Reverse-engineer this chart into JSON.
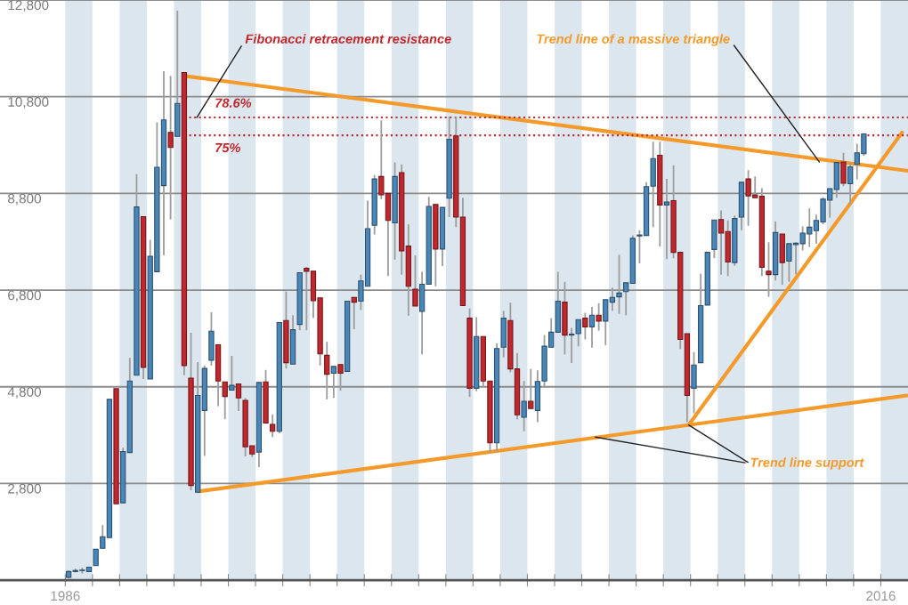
{
  "chart_data": {
    "type": "candlestick",
    "x": [
      1986.125,
      1986.375,
      1986.625,
      1986.875,
      1987.125,
      1987.375,
      1987.625,
      1987.875,
      1988.125,
      1988.375,
      1988.625,
      1988.875,
      1989.125,
      1989.375,
      1989.625,
      1989.875,
      1990.125,
      1990.375,
      1990.625,
      1990.875,
      1991.125,
      1991.375,
      1991.625,
      1991.875,
      1992.125,
      1992.375,
      1992.625,
      1992.875,
      1993.125,
      1993.375,
      1993.625,
      1993.875,
      1994.125,
      1994.375,
      1994.625,
      1994.875,
      1995.125,
      1995.375,
      1995.625,
      1995.875,
      1996.125,
      1996.375,
      1996.625,
      1996.875,
      1997.125,
      1997.375,
      1997.625,
      1997.875,
      1998.125,
      1998.375,
      1998.625,
      1998.875,
      1999.125,
      1999.375,
      1999.625,
      1999.875,
      2000.125,
      2000.375,
      2000.625,
      2000.875,
      2001.125,
      2001.375,
      2001.625,
      2001.875,
      2002.125,
      2002.375,
      2002.625,
      2002.875,
      2003.125,
      2003.375,
      2003.625,
      2003.875,
      2004.125,
      2004.375,
      2004.625,
      2004.875,
      2005.125,
      2005.375,
      2005.625,
      2005.875,
      2006.125,
      2006.375,
      2006.625,
      2006.875,
      2007.125,
      2007.375,
      2007.625,
      2007.875,
      2008.125,
      2008.375,
      2008.625,
      2008.875,
      2009.125,
      2009.375,
      2009.625,
      2009.875,
      2010.125,
      2010.375,
      2010.625,
      2010.875,
      2011.125,
      2011.375,
      2011.625,
      2011.875,
      2012.125,
      2012.375,
      2012.625,
      2012.875,
      2013.125,
      2013.375,
      2013.625,
      2013.875,
      2014.125,
      2014.375,
      2014.625,
      2014.875,
      2015.125,
      2015.375
    ],
    "ohlc": [
      [
        860,
        1000,
        840,
        980
      ],
      [
        980,
        1040,
        960,
        1000
      ],
      [
        1000,
        1060,
        940,
        1010
      ],
      [
        980,
        1080,
        980,
        1070
      ],
      [
        1100,
        1440,
        1100,
        1440
      ],
      [
        1460,
        1940,
        1460,
        1700
      ],
      [
        1680,
        4540,
        1680,
        4540
      ],
      [
        4760,
        4760,
        2380,
        2380
      ],
      [
        2400,
        3540,
        2400,
        3460
      ],
      [
        3440,
        5400,
        3440,
        4920
      ],
      [
        5040,
        9200,
        5040,
        8520
      ],
      [
        8320,
        8320,
        4960,
        5200
      ],
      [
        4960,
        7840,
        4960,
        7500
      ],
      [
        7180,
        10270,
        7180,
        9340
      ],
      [
        8960,
        11330,
        7520,
        10320
      ],
      [
        10060,
        11230,
        8260,
        9750
      ],
      [
        9980,
        12580,
        9980,
        10660
      ],
      [
        11300,
        11300,
        5040,
        5240
      ],
      [
        4980,
        5920,
        2660,
        2760
      ],
      [
        2620,
        5310,
        2600,
        4620
      ],
      [
        4310,
        5240,
        3370,
        5180
      ],
      [
        5350,
        6340,
        5240,
        5950
      ],
      [
        5670,
        5670,
        4400,
        4920
      ],
      [
        4900,
        4900,
        4130,
        4600
      ],
      [
        4730,
        5440,
        4730,
        4830
      ],
      [
        4860,
        4860,
        4300,
        4570
      ],
      [
        4520,
        4570,
        3360,
        3560
      ],
      [
        3580,
        3580,
        3350,
        3410
      ],
      [
        3450,
        4890,
        3140,
        4890
      ],
      [
        4900,
        5150,
        4050,
        4050
      ],
      [
        4020,
        4230,
        3760,
        3880
      ],
      [
        3880,
        6130,
        3840,
        6130
      ],
      [
        6170,
        6770,
        5180,
        5300
      ],
      [
        5270,
        6280,
        5270,
        5980
      ],
      [
        6090,
        7160,
        5970,
        7160
      ],
      [
        7250,
        7280,
        5970,
        7190
      ],
      [
        7190,
        7190,
        6220,
        6580
      ],
      [
        6640,
        6640,
        5240,
        5480
      ],
      [
        5450,
        5730,
        4540,
        5060
      ],
      [
        5080,
        5220,
        4570,
        5220
      ],
      [
        5260,
        5260,
        4720,
        5080
      ],
      [
        5120,
        6570,
        5120,
        6570
      ],
      [
        6650,
        6650,
        5990,
        6550
      ],
      [
        6570,
        7120,
        6390,
        6990
      ],
      [
        6880,
        8650,
        6880,
        8070
      ],
      [
        8140,
        9180,
        7950,
        9100
      ],
      [
        9150,
        10310,
        8680,
        8770
      ],
      [
        8800,
        8800,
        7090,
        8240
      ],
      [
        8190,
        9440,
        7430,
        9150
      ],
      [
        9230,
        9400,
        7120,
        7610
      ],
      [
        7710,
        8160,
        6270,
        6880
      ],
      [
        6820,
        7520,
        6470,
        6470
      ],
      [
        6360,
        7180,
        5470,
        6920
      ],
      [
        6920,
        8730,
        6920,
        8530
      ],
      [
        8570,
        8570,
        6880,
        7650
      ],
      [
        7650,
        8510,
        7300,
        8510
      ],
      [
        8700,
        10390,
        8310,
        9920
      ],
      [
        9990,
        10390,
        8100,
        8310
      ],
      [
        8310,
        8710,
        6480,
        6480
      ],
      [
        6220,
        6420,
        4590,
        4770
      ],
      [
        4770,
        6240,
        4710,
        5840
      ],
      [
        5840,
        5840,
        4800,
        4920
      ],
      [
        4920,
        4920,
        3430,
        3640
      ],
      [
        3640,
        5700,
        3460,
        5590
      ],
      [
        5620,
        6370,
        5410,
        6220
      ],
      [
        6170,
        6540,
        5100,
        5170
      ],
      [
        5170,
        5500,
        4130,
        4220
      ],
      [
        4170,
        4920,
        3880,
        4500
      ],
      [
        4500,
        5170,
        4350,
        4350
      ],
      [
        4310,
        5140,
        4070,
        4910
      ],
      [
        4920,
        5870,
        4800,
        5640
      ],
      [
        5620,
        6220,
        5620,
        5930
      ],
      [
        5930,
        7180,
        5930,
        6570
      ],
      [
        6550,
        6970,
        5470,
        5870
      ],
      [
        5870,
        6020,
        5290,
        5890
      ],
      [
        5900,
        6190,
        5640,
        6190
      ],
      [
        6220,
        6330,
        5780,
        6040
      ],
      [
        6040,
        6450,
        5610,
        6280
      ],
      [
        6280,
        6530,
        5960,
        6160
      ],
      [
        6160,
        6600,
        5660,
        6600
      ],
      [
        6550,
        6850,
        6370,
        6650
      ],
      [
        6660,
        7530,
        6310,
        6740
      ],
      [
        6770,
        6950,
        6280,
        6950
      ],
      [
        6940,
        7930,
        6940,
        7870
      ],
      [
        7920,
        8040,
        7350,
        7940
      ],
      [
        7930,
        9030,
        7930,
        8940
      ],
      [
        8950,
        9870,
        8100,
        9520
      ],
      [
        9590,
        9870,
        7700,
        8560
      ],
      [
        8560,
        9100,
        7440,
        8620
      ],
      [
        8650,
        9380,
        7460,
        7580
      ],
      [
        7580,
        7580,
        5580,
        5780
      ],
      [
        5900,
        5900,
        4070,
        4620
      ],
      [
        4770,
        5520,
        4250,
        5250
      ],
      [
        5300,
        7140,
        5300,
        6480
      ],
      [
        6490,
        7580,
        6490,
        7580
      ],
      [
        7640,
        8250,
        7460,
        8250
      ],
      [
        8260,
        8450,
        7120,
        7980
      ],
      [
        8010,
        8240,
        7090,
        7380
      ],
      [
        7370,
        8340,
        7300,
        8280
      ],
      [
        8310,
        9030,
        8040,
        9030
      ],
      [
        9100,
        9280,
        8130,
        8750
      ],
      [
        8770,
        9150,
        8710,
        8710
      ],
      [
        8740,
        8910,
        7090,
        7270
      ],
      [
        7190,
        7790,
        6660,
        7120
      ],
      [
        7120,
        8220,
        7000,
        7990
      ],
      [
        7960,
        7960,
        6910,
        7370
      ],
      [
        7400,
        7760,
        6970,
        7760
      ],
      [
        7740,
        7790,
        7130,
        7770
      ],
      [
        7760,
        8120,
        7620,
        7980
      ],
      [
        7960,
        8490,
        7690,
        8100
      ],
      [
        8030,
        8360,
        7760,
        8240
      ],
      [
        8210,
        8720,
        8160,
        8680
      ],
      [
        8660,
        8900,
        8300,
        8900
      ],
      [
        8880,
        9440,
        8710,
        9440
      ],
      [
        9450,
        9640,
        8950,
        9010
      ],
      [
        9000,
        9440,
        8570,
        9350
      ],
      [
        9400,
        9830,
        9090,
        9640
      ],
      [
        9620,
        10040,
        9580,
        10030
      ]
    ],
    "colors": [
      "#4a87b9",
      "#4a87b9",
      "#4a87b9",
      "#4a87b9",
      "#4a87b9",
      "#4a87b9",
      "#4a87b9",
      "#c1272d",
      "#4a87b9",
      "#4a87b9",
      "#4a87b9",
      "#c1272d",
      "#4a87b9",
      "#4a87b9",
      "#4a87b9",
      "#c1272d",
      "#4a87b9",
      "#c1272d",
      "#c1272d",
      "#4a87b9",
      "#4a87b9",
      "#4a87b9",
      "#c1272d",
      "#c1272d",
      "#4a87b9",
      "#c1272d",
      "#c1272d",
      "#c1272d",
      "#4a87b9",
      "#c1272d",
      "#c1272d",
      "#4a87b9",
      "#c1272d",
      "#4a87b9",
      "#4a87b9",
      "#c1272d",
      "#c1272d",
      "#c1272d",
      "#c1272d",
      "#4a87b9",
      "#c1272d",
      "#4a87b9",
      "#c1272d",
      "#4a87b9",
      "#4a87b9",
      "#4a87b9",
      "#c1272d",
      "#c1272d",
      "#4a87b9",
      "#c1272d",
      "#c1272d",
      "#c1272d",
      "#4a87b9",
      "#4a87b9",
      "#c1272d",
      "#4a87b9",
      "#4a87b9",
      "#c1272d",
      "#c1272d",
      "#c1272d",
      "#4a87b9",
      "#c1272d",
      "#c1272d",
      "#4a87b9",
      "#4a87b9",
      "#c1272d",
      "#c1272d",
      "#4a87b9",
      "#c1272d",
      "#4a87b9",
      "#4a87b9",
      "#4a87b9",
      "#4a87b9",
      "#c1272d",
      "#4a87b9",
      "#4a87b9",
      "#c1272d",
      "#4a87b9",
      "#c1272d",
      "#4a87b9",
      "#4a87b9",
      "#4a87b9",
      "#4a87b9",
      "#4a87b9",
      "#4a87b9",
      "#4a87b9",
      "#4a87b9",
      "#c1272d",
      "#4a87b9",
      "#c1272d",
      "#c1272d",
      "#c1272d",
      "#4a87b9",
      "#4a87b9",
      "#4a87b9",
      "#4a87b9",
      "#c1272d",
      "#c1272d",
      "#4a87b9",
      "#4a87b9",
      "#c1272d",
      "#c1272d",
      "#c1272d",
      "#c1272d",
      "#4a87b9",
      "#c1272d",
      "#4a87b9",
      "#4a87b9",
      "#4a87b9",
      "#4a87b9",
      "#4a87b9",
      "#4a87b9",
      "#4a87b9",
      "#4a87b9",
      "#c1272d",
      "#4a87b9",
      "#4a87b9",
      "#4a87b9"
    ],
    "series": [
      {
        "type": "line",
        "color": "#f39a2b",
        "x": [
          1990.38,
          2016.95
        ],
        "values": [
          11230,
          9270
        ]
      },
      {
        "type": "line",
        "color": "#f39a2b",
        "x": [
          1990.94,
          2016.95
        ],
        "values": [
          2640,
          4620
        ]
      },
      {
        "type": "line",
        "color": "#f39a2b",
        "x": [
          2008.93,
          2016.78
        ],
        "values": [
          4010,
          10060
        ]
      }
    ],
    "xlim": [
      1983.6,
      2017
    ],
    "xticks": [
      {
        "value": 1986,
        "label": "1986"
      },
      {
        "value": 1987,
        "label": null
      },
      {
        "value": 1988,
        "label": null
      },
      {
        "value": 1989,
        "label": null
      },
      {
        "value": 1990,
        "label": null
      },
      {
        "value": 1991,
        "label": null
      },
      {
        "value": 1992,
        "label": null
      },
      {
        "value": 1993,
        "label": null
      },
      {
        "value": 1994,
        "label": null
      },
      {
        "value": 1995,
        "label": null
      },
      {
        "value": 1996,
        "label": null
      },
      {
        "value": 1997,
        "label": null
      },
      {
        "value": 1998,
        "label": null
      },
      {
        "value": 1999,
        "label": null
      },
      {
        "value": 2000,
        "label": null
      },
      {
        "value": 2001,
        "label": null
      },
      {
        "value": 2002,
        "label": null
      },
      {
        "value": 2003,
        "label": null
      },
      {
        "value": 2004,
        "label": null
      },
      {
        "value": 2005,
        "label": null
      },
      {
        "value": 2006,
        "label": null
      },
      {
        "value": 2007,
        "label": null
      },
      {
        "value": 2008,
        "label": null
      },
      {
        "value": 2009,
        "label": null
      },
      {
        "value": 2010,
        "label": null
      },
      {
        "value": 2011,
        "label": null
      },
      {
        "value": 2012,
        "label": null
      },
      {
        "value": 2013,
        "label": null
      },
      {
        "value": 2014,
        "label": null
      },
      {
        "value": 2015,
        "label": null
      },
      {
        "value": 2016,
        "label": "2016"
      }
    ],
    "ylim": [
      800,
      12800
    ],
    "yticks": [
      {
        "value": 2800,
        "label": "2,800"
      },
      {
        "value": 4800,
        "label": "4,800"
      },
      {
        "value": 6800,
        "label": "6,800"
      },
      {
        "value": 8800,
        "label": "8,800"
      },
      {
        "value": 10800,
        "label": "10,800"
      },
      {
        "value": 12800,
        "label": "12,800"
      }
    ],
    "grid": "y",
    "ref_lines": [
      {
        "axis": "y",
        "value": 10370,
        "color": "#c1272d",
        "line_style": "dotted"
      },
      {
        "axis": "y",
        "value": 10000,
        "color": "#c1272d",
        "line_style": "dotted"
      }
    ],
    "bands": [
      {
        "axis": "x",
        "from": 1986,
        "to": 1987,
        "color": "#dce6ee"
      },
      {
        "axis": "x",
        "from": 1988,
        "to": 1989,
        "color": "#dce6ee"
      },
      {
        "axis": "x",
        "from": 1990,
        "to": 1991,
        "color": "#dce6ee"
      },
      {
        "axis": "x",
        "from": 1992,
        "to": 1993,
        "color": "#dce6ee"
      },
      {
        "axis": "x",
        "from": 1994,
        "to": 1995,
        "color": "#dce6ee"
      },
      {
        "axis": "x",
        "from": 1996,
        "to": 1997,
        "color": "#dce6ee"
      },
      {
        "axis": "x",
        "from": 1998,
        "to": 1999,
        "color": "#dce6ee"
      },
      {
        "axis": "x",
        "from": 2000,
        "to": 2001,
        "color": "#dce6ee"
      },
      {
        "axis": "x",
        "from": 2002,
        "to": 2003,
        "color": "#dce6ee"
      },
      {
        "axis": "x",
        "from": 2004,
        "to": 2005,
        "color": "#dce6ee"
      },
      {
        "axis": "x",
        "from": 2006,
        "to": 2007,
        "color": "#dce6ee"
      },
      {
        "axis": "x",
        "from": 2008,
        "to": 2009,
        "color": "#dce6ee"
      },
      {
        "axis": "x",
        "from": 2010,
        "to": 2011,
        "color": "#dce6ee"
      },
      {
        "axis": "x",
        "from": 2012,
        "to": 2013,
        "color": "#dce6ee"
      },
      {
        "axis": "x",
        "from": 2014,
        "to": 2015,
        "color": "#dce6ee"
      },
      {
        "axis": "x",
        "from": 2016,
        "to": 2017,
        "color": "#dce6ee"
      }
    ],
    "annotations": [
      {
        "text": "Fibonacci retracement resistance",
        "x": 1990.84,
        "y": 10370
      },
      {
        "text": "Trend line of a massive triangle",
        "x": 2013.74,
        "y": 9450
      },
      {
        "text": "Trend line support",
        "x": 2005.5,
        "y": 3760
      },
      {
        "text": "78.6%",
        "x": 1991.5,
        "y": 10370
      },
      {
        "text": "75%",
        "x": 1991.5,
        "y": 10000
      }
    ]
  }
}
